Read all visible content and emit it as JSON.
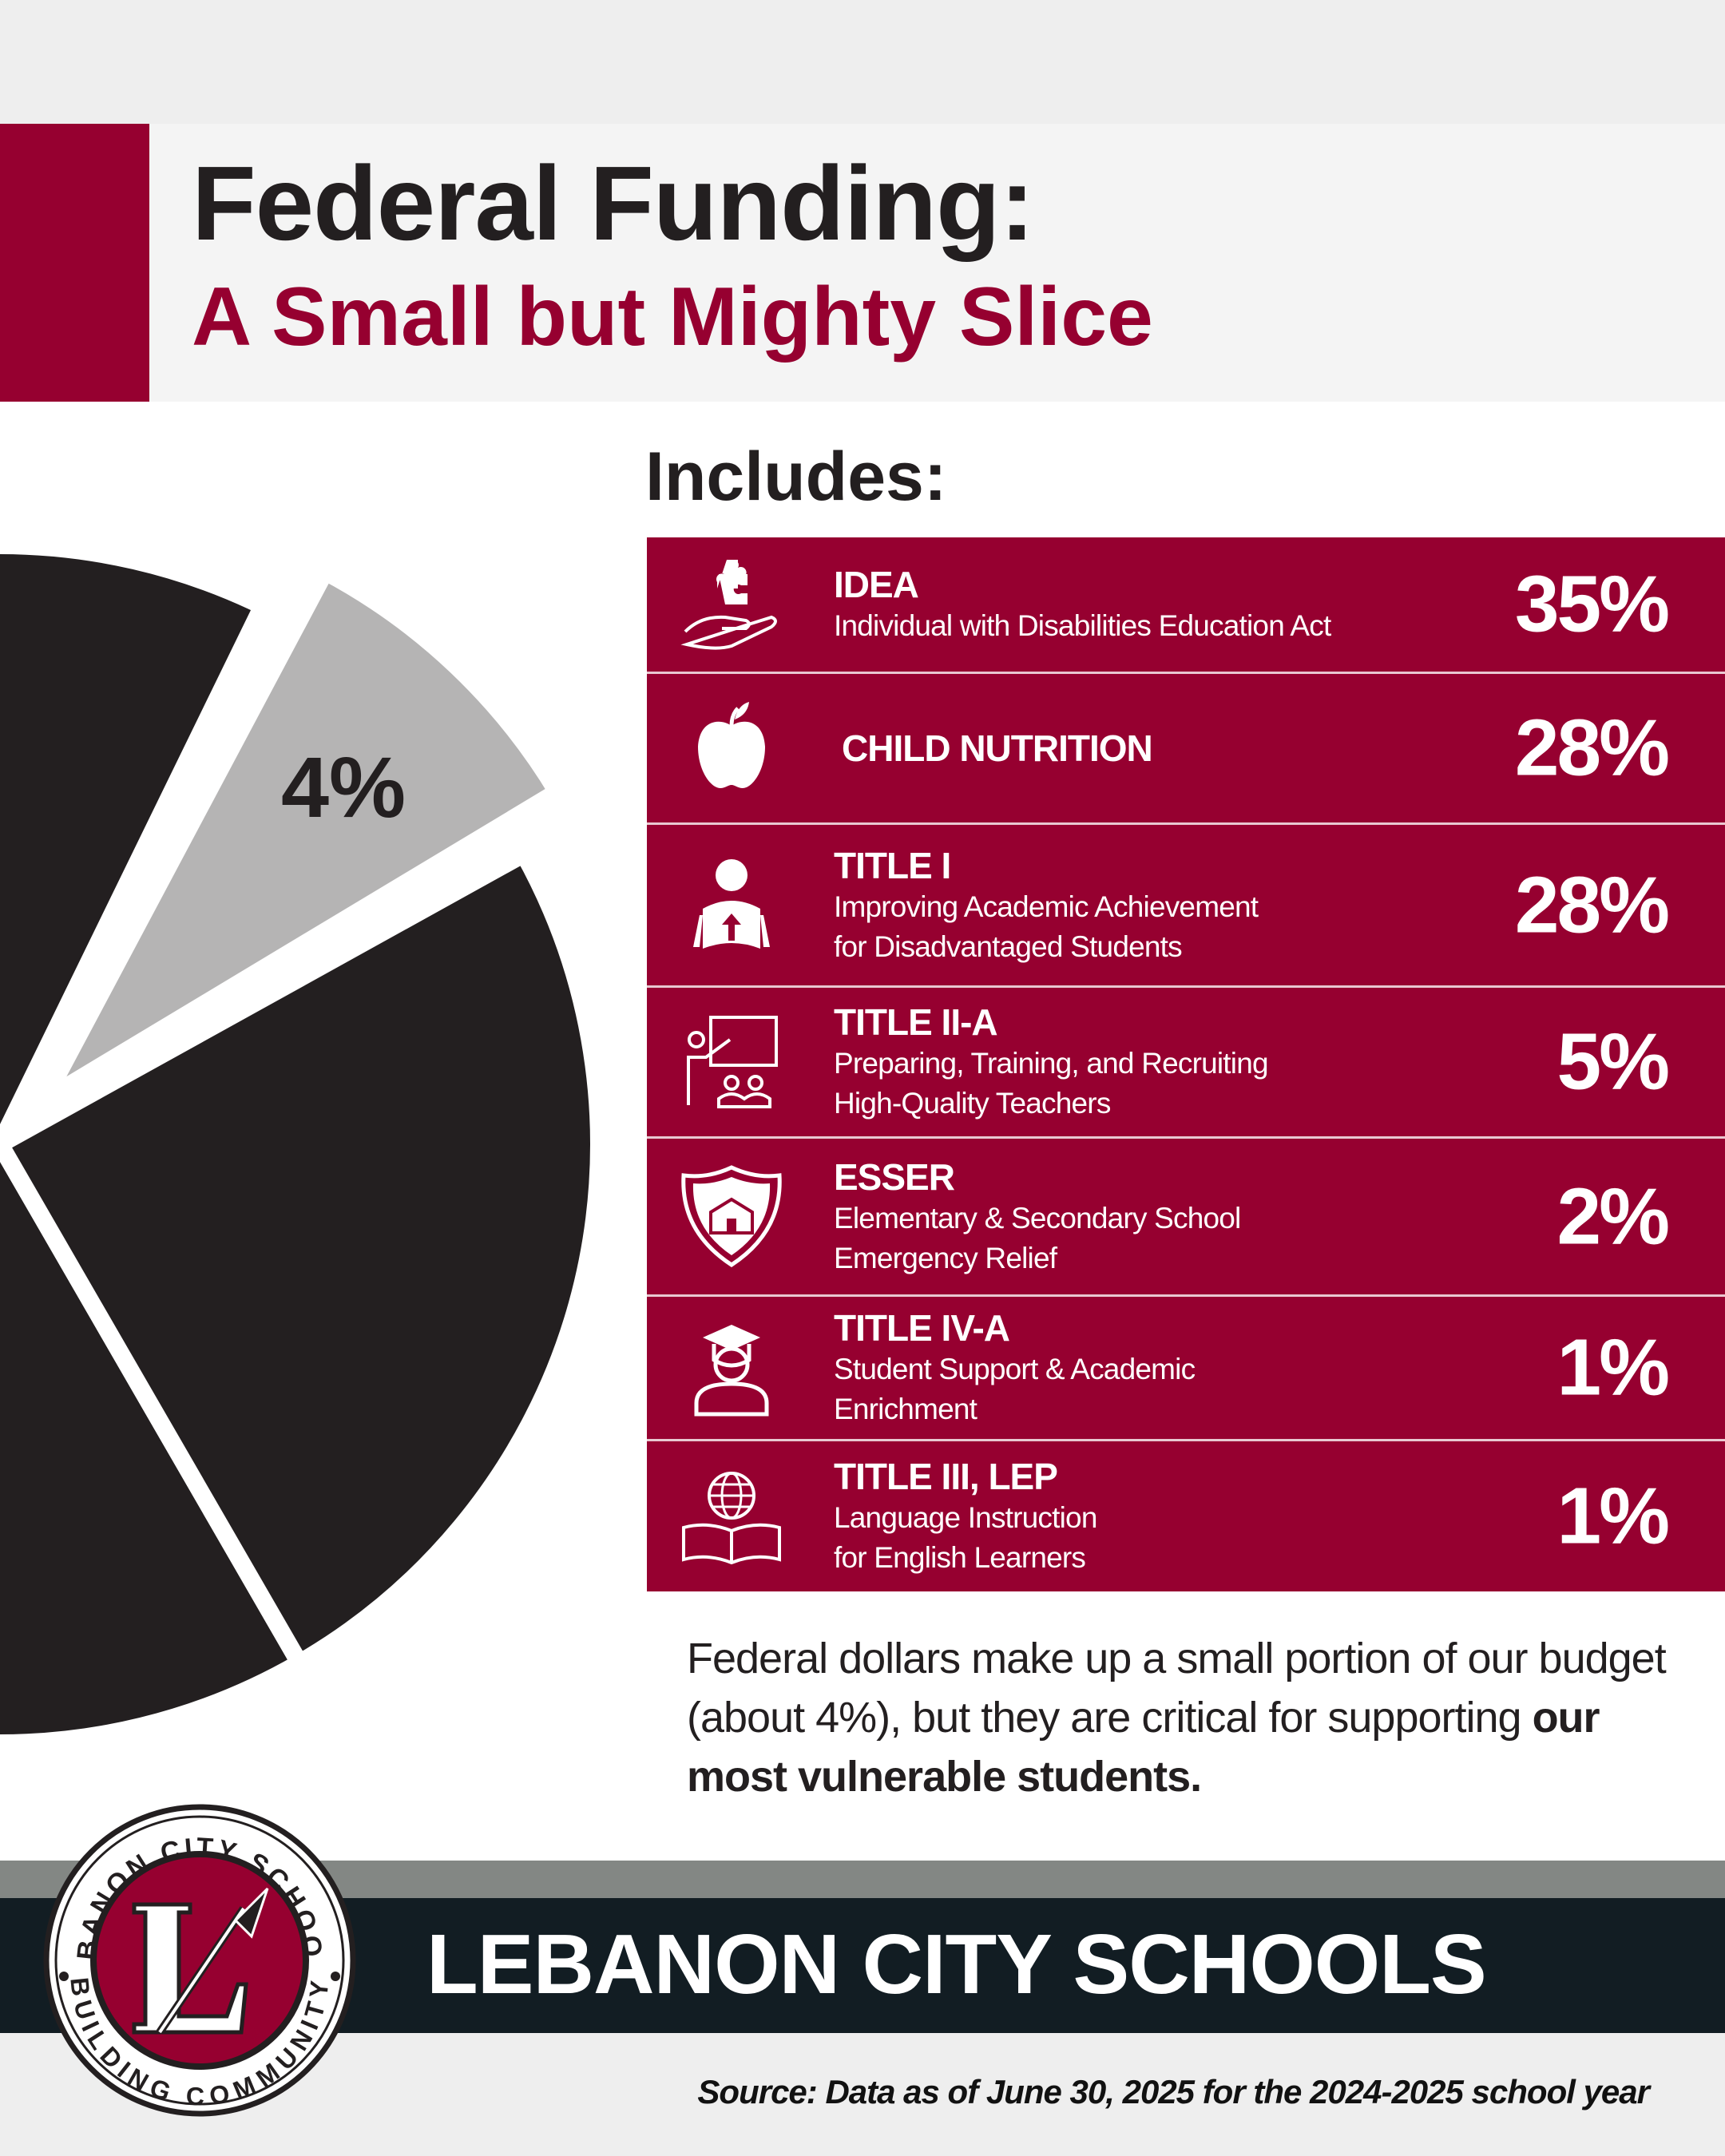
{
  "header": {
    "title": "Federal Funding:",
    "subtitle": "A Small but Mighty Slice"
  },
  "colors": {
    "brand_red": "#960030",
    "dark": "#231f20",
    "slice_gray": "#b5b4b4",
    "footer_dark": "#121d23",
    "footer_gray": "#838784"
  },
  "chart_data": {
    "type": "pie",
    "slices": [
      {
        "label": "4%",
        "value": 4,
        "color": "#b5b4b4"
      },
      {
        "label": "",
        "value": 96,
        "color": "#231f20"
      }
    ]
  },
  "includes": {
    "heading": "Includes:",
    "items": [
      {
        "icon": "hand-puzzle-icon",
        "name": "IDEA",
        "desc": [
          "Individual with Disabilities Education Act"
        ],
        "pct": "35%"
      },
      {
        "icon": "apple-icon",
        "name": "CHILD NUTRITION",
        "desc": [],
        "pct": "28%"
      },
      {
        "icon": "student-reading-icon",
        "name": "TITLE I",
        "desc": [
          "Improving Academic Achievement",
          "for Disadvantaged Students"
        ],
        "pct": "28%"
      },
      {
        "icon": "teacher-board-icon",
        "name": "TITLE II-A",
        "desc": [
          "Preparing, Training, and Recruiting",
          "High-Quality Teachers"
        ],
        "pct": "5%"
      },
      {
        "icon": "shield-school-icon",
        "name": "ESSER",
        "desc": [
          "Elementary & Secondary School",
          "Emergency Relief"
        ],
        "pct": "2%"
      },
      {
        "icon": "graduate-icon",
        "name": "TITLE IV-A",
        "desc": [
          "Student Support & Academic",
          "Enrichment"
        ],
        "pct": "1%"
      },
      {
        "icon": "globe-book-icon",
        "name": "TITLE III, LEP",
        "desc": [
          "Language Instruction",
          "for English Learners"
        ],
        "pct": "1%"
      }
    ]
  },
  "paragraph": {
    "text": "Federal dollars make up a small portion of our budget (about 4%), but they are critical for supporting ",
    "bold": "our most vulnerable students."
  },
  "footer": {
    "brand": "LEBANON CITY SCHOOLS",
    "source": "Source: Data as of June 30, 2025 for the 2024-2025 school year",
    "logo_top": "LEBANON CITY SCHOOLS",
    "logo_bottom": "BUILDING COMMUNITY",
    "logo_letter": "L"
  }
}
